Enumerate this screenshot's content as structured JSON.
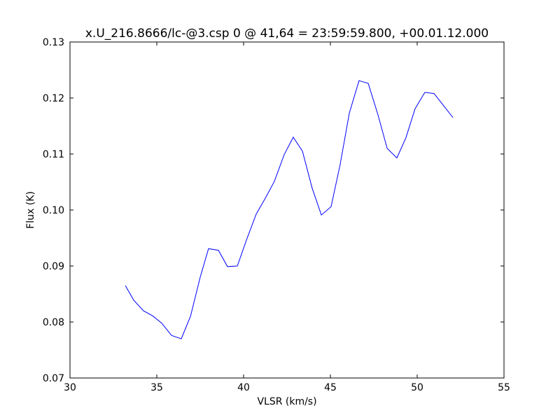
{
  "chart_data": {
    "type": "line",
    "title": "x.U_216.8666/lc-@3.csp 0 @ 41,64 = 23:59:59.800, +00.01.12.000",
    "x_label": "VLSR (km/s)",
    "y_label": "Flux (K)",
    "x": [
      33.19,
      33.67,
      34.23,
      34.76,
      35.28,
      35.85,
      36.41,
      36.94,
      37.5,
      37.98,
      38.55,
      39.07,
      39.64,
      40.16,
      40.73,
      41.25,
      41.77,
      42.34,
      42.86,
      43.39,
      43.95,
      44.48,
      45.04,
      45.56,
      46.09,
      46.65,
      47.18,
      47.74,
      48.27,
      48.83,
      49.35,
      49.88,
      50.44,
      50.97,
      51.53,
      52.06
    ],
    "series": [
      {
        "color": "#0000ff",
        "values": [
          0.0865,
          0.0839,
          0.082,
          0.0811,
          0.0798,
          0.0776,
          0.077,
          0.081,
          0.088,
          0.0931,
          0.0928,
          0.0899,
          0.09,
          0.0946,
          0.0993,
          0.1021,
          0.1051,
          0.1099,
          0.113,
          0.1105,
          0.1039,
          0.0991,
          0.1006,
          0.1081,
          0.1173,
          0.1231,
          0.1226,
          0.117,
          0.111,
          0.1093,
          0.1129,
          0.1181,
          0.121,
          0.1208,
          0.1186,
          0.1165
        ]
      }
    ],
    "xlim": [
      30,
      55
    ],
    "xticks": [
      30,
      35,
      40,
      45,
      50,
      55
    ],
    "ylim": [
      0.07,
      0.13
    ],
    "yticks": [
      0.07,
      0.08,
      0.09,
      {
        "value": 0.1,
        "label": "0.10"
      },
      0.11,
      0.12,
      0.13
    ]
  }
}
